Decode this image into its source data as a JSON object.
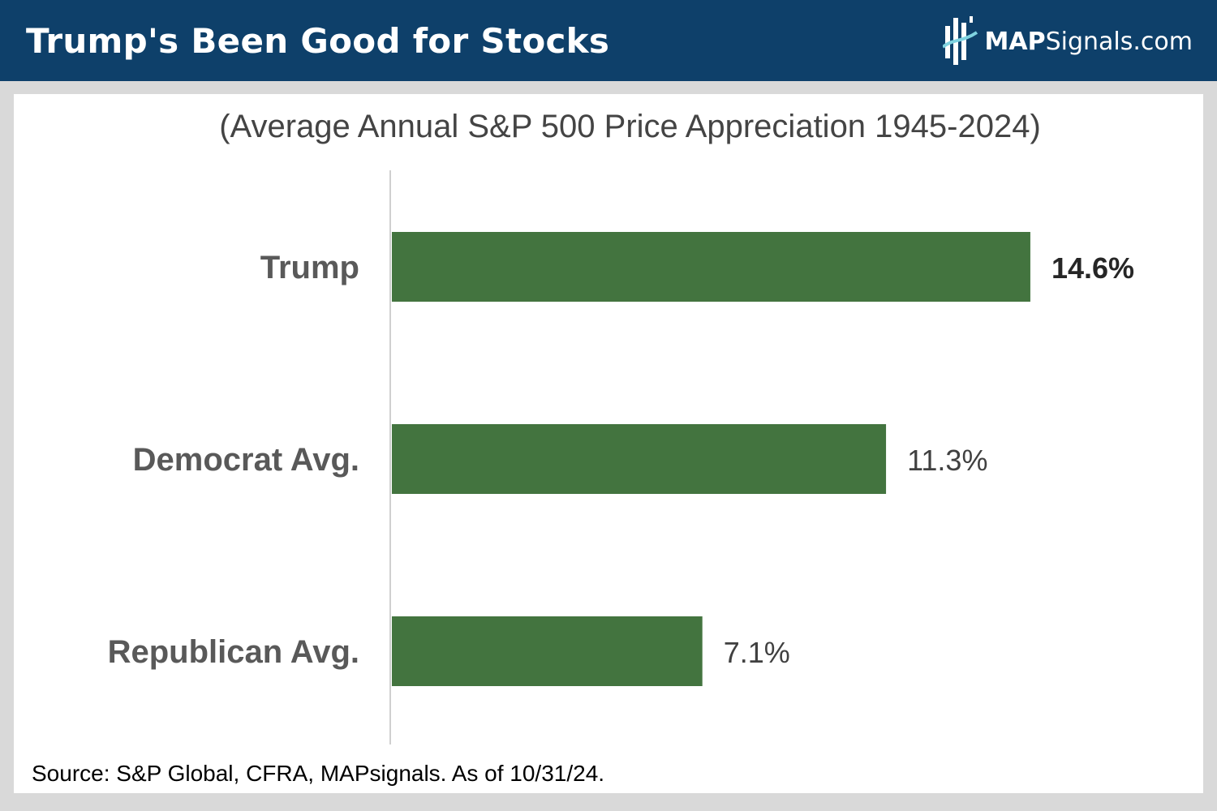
{
  "header": {
    "title": "Trump's Been Good for Stocks",
    "logo_bold": "MAP",
    "logo_rest": "Signals.com",
    "background": "#0e406a"
  },
  "chart_data": {
    "type": "bar",
    "orientation": "horizontal",
    "title": "(Average Annual S&P 500 Price Appreciation 1945-2024)",
    "categories": [
      "Trump",
      "Democrat Avg.",
      "Republican Avg."
    ],
    "values": [
      14.6,
      11.3,
      7.1
    ],
    "value_labels": [
      "14.6%",
      "11.3%",
      "7.1%"
    ],
    "highlight_first_label_bold": true,
    "unit": "%",
    "xlim": [
      0,
      16
    ],
    "bar_color": "#43743f",
    "grid": false,
    "legend": "none"
  },
  "source": "Source: S&P Global, CFRA, MAPsignals. As of 10/31/24."
}
